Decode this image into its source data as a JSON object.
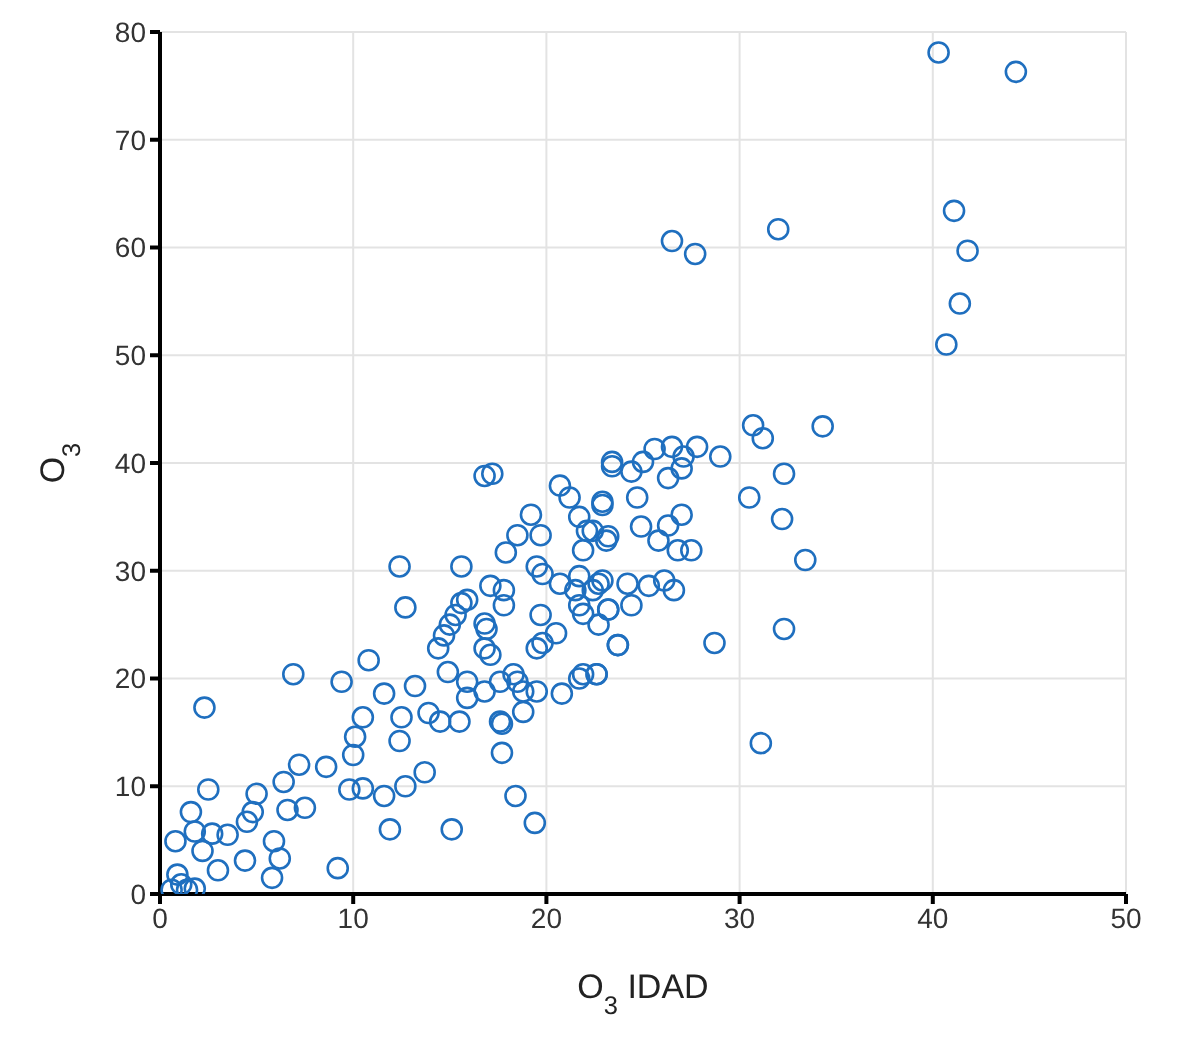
{
  "chart_data": {
    "type": "scatter",
    "xlabel": "O$_{3}$ IDAD",
    "ylabel": "O$_{3}$",
    "xlim": [
      0,
      50
    ],
    "xticks": [
      0,
      10,
      20,
      30,
      40,
      50
    ],
    "ylim": [
      0,
      80
    ],
    "yticks": [
      0,
      10,
      20,
      30,
      40,
      50,
      60,
      70,
      80
    ],
    "grid": true,
    "marker": "circle",
    "series": [
      {
        "color": "#1f6fbf",
        "x": [
          40.3,
          44.3,
          26.5,
          27.7,
          32.0,
          41.1,
          41.8,
          41.4,
          40.7,
          30.7,
          31.2,
          34.3,
          30.5,
          32.3,
          32.2,
          33.4,
          32.3,
          28.7,
          31.1,
          29.0,
          16.8,
          17.2,
          12.4,
          12.7,
          2.3,
          6.9,
          9.4,
          10.8,
          11.6,
          13.2,
          10.5,
          10.1,
          10.0,
          9.8,
          10.5,
          11.6,
          12.7,
          13.7,
          12.4,
          12.5,
          13.9,
          14.5,
          15.5,
          11.9,
          15.1,
          9.2,
          17.7,
          17.7,
          18.4,
          19.4,
          7.2,
          8.6,
          6.4,
          5.0,
          7.5,
          6.6,
          2.5,
          1.6,
          0.8,
          1.8,
          2.7,
          3.5,
          4.5,
          4.8,
          4.4,
          3.0,
          2.2,
          5.9,
          6.2,
          5.8,
          1.1,
          0.6,
          1.4,
          1.8,
          0.9,
          14.4,
          14.7,
          15.0,
          15.3,
          15.6,
          15.9,
          15.6,
          16.8,
          17.1,
          16.9,
          16.8,
          17.1,
          17.8,
          17.8,
          17.9,
          18.5,
          19.2,
          19.7,
          14.9,
          15.9,
          15.9,
          16.8,
          17.6,
          18.3,
          18.5,
          18.8,
          19.5,
          18.8,
          17.6,
          19.5,
          19.8,
          19.7,
          20.5,
          20.8,
          20.7,
          19.8,
          19.5,
          21.7,
          22.6,
          20.7,
          21.2,
          21.7,
          22.4,
          23.1,
          21.9,
          22.9,
          23.4,
          21.5,
          21.7,
          22.4,
          22.9,
          23.2,
          23.7,
          23.4,
          24.4,
          25.0,
          25.6,
          26.5,
          27.1,
          27.8,
          24.7,
          26.3,
          27.0,
          22.9,
          24.9,
          25.8,
          26.3,
          27.0,
          27.5,
          26.8,
          23.2,
          22.1,
          21.7,
          22.7,
          24.2,
          25.3,
          26.1,
          26.6,
          24.4,
          23.2,
          22.7,
          21.9,
          23.7,
          21.9,
          22.6
        ],
        "values": [
          78.1,
          76.3,
          60.6,
          59.4,
          61.7,
          63.4,
          59.7,
          54.8,
          51.0,
          43.5,
          42.3,
          43.4,
          36.8,
          39.0,
          34.8,
          31.0,
          24.6,
          23.3,
          14.0,
          40.6,
          38.8,
          39.0,
          30.4,
          26.6,
          17.3,
          20.4,
          19.7,
          21.7,
          18.6,
          19.3,
          16.4,
          14.6,
          12.9,
          9.7,
          9.8,
          9.1,
          10.0,
          11.3,
          14.2,
          16.4,
          16.8,
          16.0,
          16.0,
          6.0,
          6.0,
          2.4,
          13.1,
          15.8,
          9.1,
          6.6,
          12.0,
          11.8,
          10.4,
          9.3,
          8.0,
          7.8,
          9.7,
          7.6,
          4.9,
          5.8,
          5.6,
          5.5,
          6.7,
          7.6,
          3.1,
          2.2,
          4.0,
          4.9,
          3.3,
          1.5,
          0.9,
          0.4,
          0.4,
          0.5,
          1.8,
          22.8,
          24.0,
          25.0,
          25.9,
          27.0,
          27.3,
          30.4,
          22.8,
          22.2,
          24.6,
          25.1,
          28.6,
          28.2,
          26.8,
          31.7,
          33.3,
          35.2,
          33.3,
          20.6,
          19.7,
          18.2,
          18.8,
          19.7,
          20.4,
          19.7,
          18.8,
          18.8,
          16.9,
          16.0,
          22.8,
          23.3,
          25.9,
          24.2,
          18.6,
          28.8,
          29.7,
          30.4,
          20.0,
          20.4,
          37.9,
          36.8,
          35.0,
          33.7,
          32.8,
          31.9,
          36.4,
          39.7,
          28.2,
          26.8,
          28.2,
          29.1,
          26.4,
          23.1,
          40.1,
          39.2,
          40.1,
          41.3,
          41.5,
          40.6,
          41.5,
          36.8,
          38.6,
          39.5,
          36.1,
          34.1,
          32.8,
          34.2,
          35.2,
          31.9,
          31.9,
          33.2,
          33.7,
          29.5,
          28.8,
          28.8,
          28.6,
          29.1,
          28.2,
          26.8,
          26.4,
          25.0,
          26.0,
          23.1,
          20.4,
          20.4
        ]
      }
    ]
  }
}
